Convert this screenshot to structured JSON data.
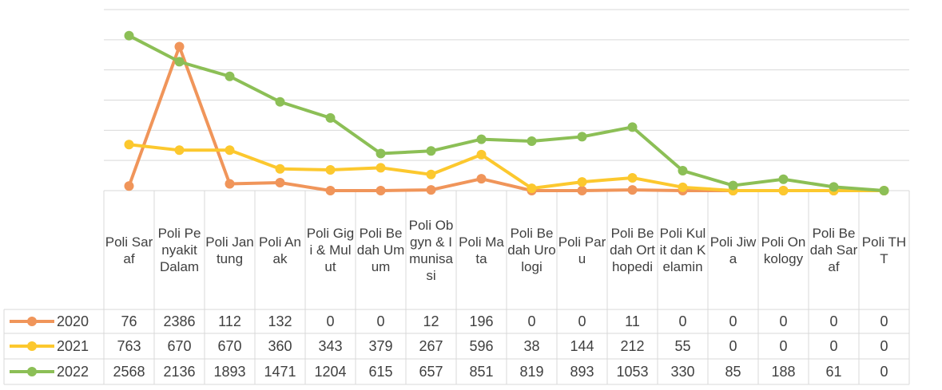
{
  "chart_data": {
    "type": "line",
    "categories": [
      "Poli Saraf",
      "Poli Penyakit Dalam",
      "Poli Jantung",
      "Poli Anak",
      "Poli Gigi & Mulut",
      "Poli Bedah Umum",
      "Poli Obgyn & Imunisasi",
      "Poli Mata",
      "Poli Bedah Urologi",
      "Poli Paru",
      "Poli Bedah Orthopedi",
      "Poli Kulit dan Kelamin",
      "Poli Jiwa",
      "Poli Onkology",
      "Poli Bedah Saraf",
      "Poli THT"
    ],
    "series": [
      {
        "name": "2020",
        "color": "#f0955a",
        "values": [
          76,
          2386,
          112,
          132,
          0,
          0,
          12,
          196,
          0,
          0,
          11,
          0,
          0,
          0,
          0,
          0
        ]
      },
      {
        "name": "2021",
        "color": "#fcc82e",
        "values": [
          763,
          670,
          670,
          360,
          343,
          379,
          267,
          596,
          38,
          144,
          212,
          55,
          0,
          0,
          0,
          0
        ]
      },
      {
        "name": "2022",
        "color": "#8cbf56",
        "values": [
          2568,
          2136,
          1893,
          1471,
          1204,
          615,
          657,
          851,
          819,
          893,
          1053,
          330,
          85,
          188,
          61,
          0
        ]
      }
    ],
    "ylim": [
      0,
      3000
    ],
    "yticks": [
      0,
      500,
      1000,
      1500,
      2000,
      2500,
      3000
    ],
    "grid": true
  }
}
